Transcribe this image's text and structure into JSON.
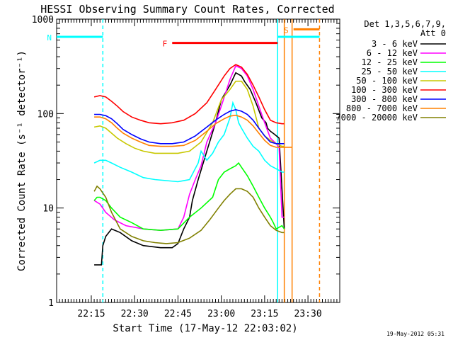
{
  "chart_data": {
    "type": "line",
    "title": "HESSI Observing Summary Count Rates, Corrected",
    "xlabel": "Start Time (17-May-12 22:03:02)",
    "ylabel": "Corrected Count Rate (s⁻¹ detector⁻¹)",
    "y_scale": "log",
    "ylim": [
      1,
      1000
    ],
    "y_ticks": [
      {
        "v": 1,
        "label": "1"
      },
      {
        "v": 10,
        "label": "10"
      },
      {
        "v": 100,
        "label": "100"
      },
      {
        "v": 1000,
        "label": "1000"
      }
    ],
    "xlim_minutes": [
      0,
      40
    ],
    "x_ticks": [
      {
        "m": 12,
        "label": "22:15"
      },
      {
        "m": 27,
        "label": "22:30"
      },
      {
        "m": 42,
        "label": "22:45"
      },
      {
        "m": 57,
        "label": "23:00"
      },
      {
        "m": 72,
        "label": "23:15"
      },
      {
        "m": 87,
        "label": "23:30"
      }
    ],
    "xlim": [
      0,
      98
    ],
    "legend": {
      "position": "right",
      "header1": "Det 1,3,5,6,7,9,",
      "header2": "Att 0"
    },
    "series": [
      {
        "name": "3 - 6 keV",
        "color": "#000000",
        "x": [
          13,
          14,
          15.5,
          16,
          17,
          19,
          22,
          26,
          30,
          36,
          40,
          42,
          44,
          46,
          47,
          49,
          52,
          55,
          57,
          60,
          62,
          64,
          65,
          67,
          69,
          71,
          72.5,
          73,
          74,
          75.5,
          77,
          78.8
        ],
        "y": [
          2.5,
          2.5,
          2.5,
          4,
          5,
          6,
          5.5,
          4.5,
          4,
          3.8,
          3.8,
          4.2,
          6,
          8,
          12,
          20,
          40,
          80,
          140,
          200,
          270,
          250,
          220,
          180,
          130,
          90,
          80,
          70,
          65,
          60,
          55,
          6
        ]
      },
      {
        "name": "6 - 12 keV",
        "color": "#ff00ff",
        "x": [
          13,
          15,
          17,
          20,
          24,
          30,
          36,
          42,
          44,
          46,
          48,
          50,
          52,
          55,
          57,
          60,
          62,
          64,
          66,
          68,
          70,
          72,
          74,
          76,
          77,
          78,
          78.8
        ],
        "y": [
          12,
          11,
          9,
          7.5,
          6.5,
          6,
          5.8,
          6,
          8,
          14,
          20,
          28,
          50,
          80,
          120,
          230,
          320,
          300,
          250,
          180,
          120,
          80,
          55,
          48,
          44,
          8,
          8
        ]
      },
      {
        "name": "12 - 25 keV",
        "color": "#00ff00",
        "x": [
          13,
          14,
          15,
          17,
          19,
          22,
          26,
          30,
          36,
          42,
          46,
          50,
          54,
          56,
          58,
          60,
          62,
          63,
          64,
          66,
          68,
          70,
          72,
          74,
          75,
          76,
          78,
          78.8
        ],
        "y": [
          12,
          13,
          13,
          12,
          10,
          8,
          7,
          6,
          5.8,
          6,
          8,
          10,
          13,
          20,
          24,
          26,
          28,
          30,
          27,
          22,
          17,
          13,
          10,
          8,
          7,
          6,
          6.5,
          6
        ]
      },
      {
        "name": "25 - 50 keV",
        "color": "#00ffff",
        "x": [
          13,
          15,
          17,
          19,
          22,
          26,
          30,
          34,
          38,
          42,
          46,
          49,
          50,
          52,
          54,
          56,
          58,
          60,
          61,
          62,
          63,
          64,
          66,
          68,
          70,
          72,
          74,
          76,
          77,
          78,
          78.8
        ],
        "y": [
          30,
          32,
          32,
          30,
          27,
          24,
          21,
          20,
          19.5,
          19,
          20,
          30,
          40,
          32,
          38,
          50,
          60,
          90,
          130,
          110,
          80,
          70,
          55,
          45,
          40,
          32,
          28,
          26,
          25,
          24,
          24
        ]
      },
      {
        "name": "50 - 100 keV",
        "color": "#c8c800",
        "x": [
          13,
          15,
          17,
          19,
          21,
          24,
          27,
          30,
          34,
          38,
          42,
          46,
          50,
          54,
          57,
          60,
          62,
          64,
          66,
          68,
          70,
          72,
          74,
          76,
          78,
          78.8
        ],
        "y": [
          72,
          74,
          70,
          62,
          55,
          48,
          43,
          40,
          38,
          38,
          38,
          40,
          50,
          80,
          140,
          180,
          220,
          220,
          180,
          120,
          70,
          58,
          52,
          48,
          45,
          45
        ]
      },
      {
        "name": "100 - 300 keV",
        "color": "#ff0000",
        "x": [
          13,
          15,
          17,
          19,
          21,
          23,
          26,
          29,
          32,
          36,
          40,
          44,
          48,
          52,
          55,
          58,
          60,
          62,
          64,
          66,
          68,
          70,
          72,
          74,
          76,
          78,
          78.8
        ],
        "y": [
          150,
          155,
          150,
          135,
          120,
          105,
          92,
          85,
          80,
          78,
          80,
          85,
          100,
          130,
          180,
          250,
          300,
          330,
          310,
          260,
          200,
          150,
          110,
          85,
          80,
          78,
          78
        ]
      },
      {
        "name": "300 - 800 keV",
        "color": "#0000ff",
        "x": [
          13,
          15,
          17,
          19,
          21,
          23,
          26,
          29,
          32,
          36,
          40,
          44,
          48,
          52,
          55,
          58,
          60,
          62,
          64,
          66,
          68,
          70,
          72,
          74,
          76,
          78,
          78.8
        ],
        "y": [
          98,
          98,
          95,
          88,
          78,
          68,
          60,
          54,
          50,
          48,
          48,
          50,
          58,
          72,
          85,
          98,
          106,
          110,
          106,
          98,
          85,
          70,
          58,
          50,
          48,
          48,
          48
        ]
      },
      {
        "name": "800 - 7000 keV",
        "color": "#ff8000",
        "x": [
          13,
          15,
          17,
          19,
          21,
          23,
          26,
          29,
          32,
          36,
          40,
          44,
          48,
          52,
          55,
          58,
          60,
          62,
          64,
          66,
          68,
          70,
          72,
          74,
          76,
          78,
          78.8,
          80,
          81.5
        ],
        "y": [
          92,
          92,
          88,
          80,
          70,
          62,
          55,
          50,
          46,
          45,
          45,
          46,
          52,
          65,
          78,
          88,
          94,
          96,
          92,
          85,
          74,
          62,
          52,
          46,
          44,
          44,
          44,
          44,
          44
        ]
      },
      {
        "name": "7000 - 20000 keV",
        "color": "#808000",
        "x": [
          13,
          14,
          15,
          17,
          19,
          22,
          26,
          30,
          34,
          38,
          42,
          46,
          50,
          53,
          56,
          58,
          60,
          62,
          64,
          66,
          68,
          70,
          72,
          74,
          76,
          78,
          78.8
        ],
        "y": [
          15,
          17,
          16,
          13,
          9,
          6,
          5,
          4.5,
          4.3,
          4.2,
          4.3,
          4.8,
          5.8,
          7.5,
          10,
          12,
          14,
          16,
          16,
          15,
          13,
          10,
          8,
          6.5,
          5.8,
          5.5,
          5.5
        ]
      }
    ],
    "annotations": [
      {
        "label": "N",
        "color": "#00ffff",
        "x1": 0,
        "x2": 16,
        "y": 650
      },
      {
        "label": "F",
        "color": "#ff0000",
        "x1": 40,
        "x2": 76.5,
        "y": 560
      },
      {
        "label": "S",
        "color": "#ff8000",
        "x1": 82,
        "x2": 91,
        "y": 780
      },
      {
        "label": "",
        "color": "#00ffff",
        "x1": 76.5,
        "x2": 91,
        "y": 650
      }
    ],
    "vlines": [
      {
        "x": 16,
        "color": "#00ffff",
        "style": "dashed"
      },
      {
        "x": 76.5,
        "color": "#00ffff",
        "style": "solid"
      },
      {
        "x": 78.8,
        "color": "#ff8000",
        "style": "solid"
      },
      {
        "x": 81.5,
        "color": "#ff8000",
        "style": "solid"
      },
      {
        "x": 91,
        "color": "#ff8000",
        "style": "dashed"
      }
    ]
  },
  "footer": {
    "timestamp": "19-May-2012 05:31"
  }
}
